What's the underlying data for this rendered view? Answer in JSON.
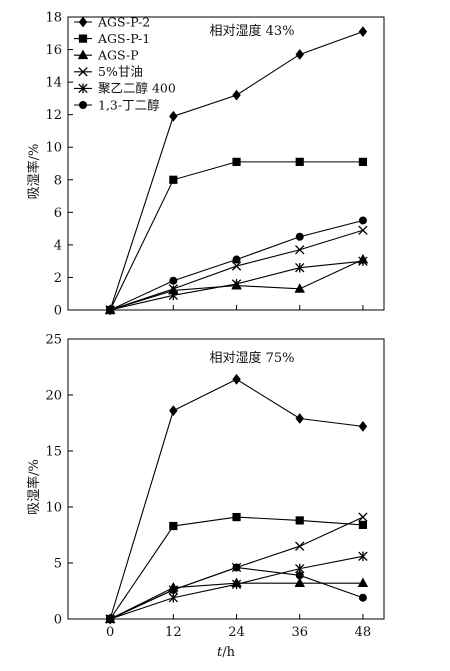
{
  "chart_data": [
    {
      "type": "line",
      "annotation": "相对湿度 43%",
      "xlabel": "",
      "ylabel": "吸湿率/%",
      "x": [
        0,
        12,
        24,
        36,
        48
      ],
      "x_ticks": [
        "0",
        "12",
        "24",
        "36",
        "48"
      ],
      "xlim": [
        -8,
        52
      ],
      "ylim": [
        0,
        18
      ],
      "y_ticks": [
        "0",
        "2",
        "4",
        "6",
        "8",
        "10",
        "12",
        "14",
        "16",
        "18"
      ],
      "legend_position": "top-left",
      "series": [
        {
          "name": "AGS-P-2",
          "marker": "diamond",
          "values": [
            0,
            11.9,
            13.2,
            15.7,
            17.1
          ]
        },
        {
          "name": "AGS-P-1",
          "marker": "square",
          "values": [
            0,
            8.0,
            9.1,
            9.1,
            9.1
          ]
        },
        {
          "name": "AGS-P",
          "marker": "triangle",
          "values": [
            0,
            1.2,
            1.5,
            1.3,
            3.1
          ]
        },
        {
          "name": "5%甘油",
          "marker": "x",
          "values": [
            0,
            1.3,
            2.7,
            3.7,
            4.9
          ]
        },
        {
          "name": "聚乙二醇 400",
          "marker": "star",
          "values": [
            0,
            0.9,
            1.6,
            2.6,
            3.0
          ]
        },
        {
          "name": "1,3-丁二醇",
          "marker": "circle",
          "values": [
            0,
            1.8,
            3.1,
            4.5,
            5.5
          ]
        }
      ]
    },
    {
      "type": "line",
      "annotation": "相对湿度 75%",
      "xlabel": "t/h",
      "ylabel": "吸湿率/%",
      "x": [
        0,
        12,
        24,
        36,
        48
      ],
      "x_ticks": [
        "0",
        "12",
        "24",
        "36",
        "48"
      ],
      "xlim": [
        -8,
        52
      ],
      "ylim": [
        0,
        25
      ],
      "y_ticks": [
        "0",
        "5",
        "10",
        "15",
        "20",
        "25"
      ],
      "series": [
        {
          "name": "AGS-P-2",
          "marker": "diamond",
          "values": [
            0,
            18.6,
            21.4,
            17.9,
            17.2
          ]
        },
        {
          "name": "AGS-P-1",
          "marker": "square",
          "values": [
            0,
            8.3,
            9.1,
            8.8,
            8.4
          ]
        },
        {
          "name": "AGS-P",
          "marker": "triangle",
          "values": [
            0,
            2.8,
            3.2,
            3.2,
            3.2
          ]
        },
        {
          "name": "5%甘油",
          "marker": "x",
          "values": [
            0,
            2.6,
            4.6,
            6.5,
            9.1
          ]
        },
        {
          "name": "聚乙二醇 400",
          "marker": "star",
          "values": [
            0,
            1.9,
            3.1,
            4.5,
            5.6
          ]
        },
        {
          "name": "1,3-丁二醇",
          "marker": "circle",
          "values": [
            0,
            2.6,
            4.6,
            3.9,
            1.9
          ]
        }
      ]
    }
  ]
}
